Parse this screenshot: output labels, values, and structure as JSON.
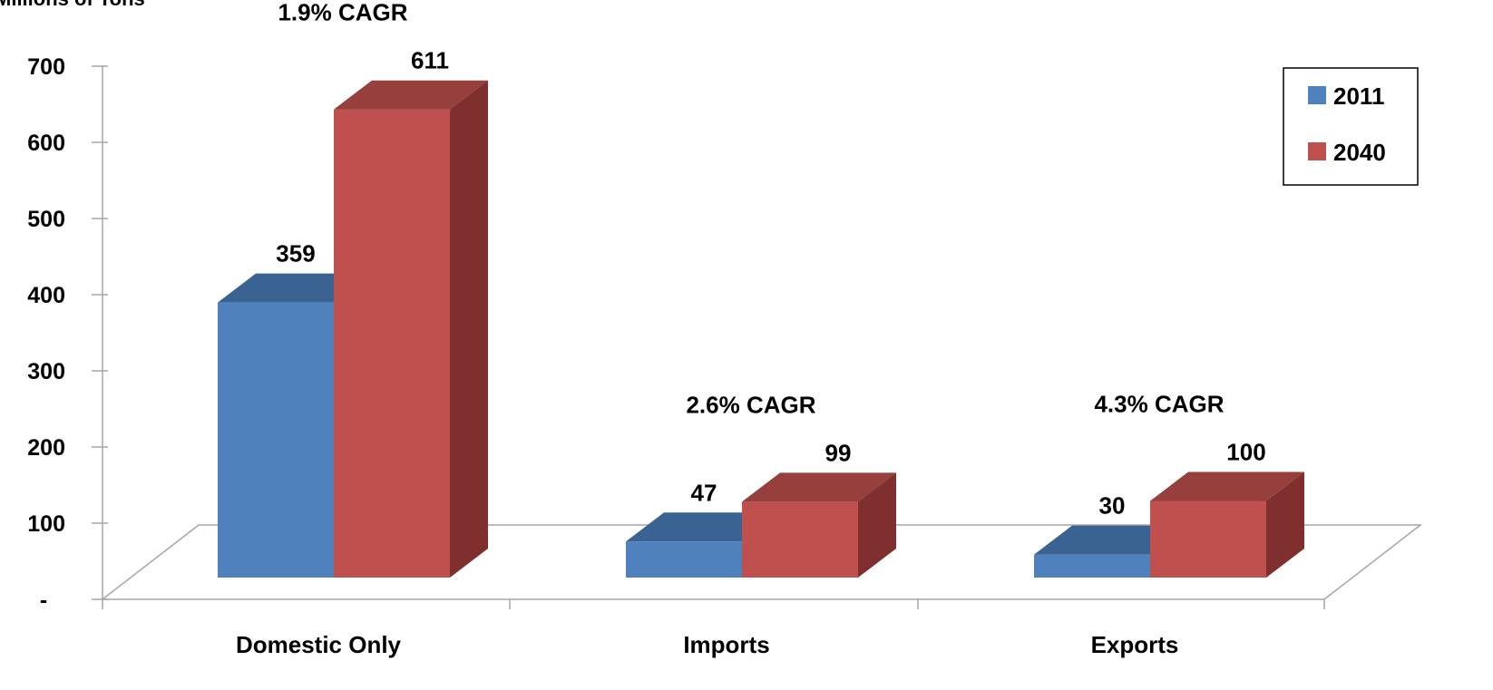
{
  "chart_data": {
    "type": "bar",
    "ylabel": "Millions of Tons",
    "categories": [
      "Domestic Only",
      "Imports",
      "Exports"
    ],
    "series": [
      {
        "name": "2011",
        "values": [
          359,
          47,
          30
        ],
        "color": "#4F81BD",
        "top_color": "#3A6292"
      },
      {
        "name": "2040",
        "values": [
          611,
          99,
          100
        ],
        "color": "#C0504D",
        "top_color": "#963F3D",
        "side_color": "#7F302E"
      }
    ],
    "data_labels": {
      "2011": [
        "359",
        "47",
        "30"
      ],
      "2040": [
        "611",
        "99",
        "100"
      ]
    },
    "annotations": [
      "1.9% CAGR",
      "2.6% CAGR",
      "4.3% CAGR"
    ],
    "yticks": [
      {
        "value": 0,
        "label": "-"
      },
      {
        "value": 100,
        "label": "100"
      },
      {
        "value": 200,
        "label": "200"
      },
      {
        "value": 300,
        "label": "300"
      },
      {
        "value": 400,
        "label": "400"
      },
      {
        "value": 500,
        "label": "500"
      },
      {
        "value": 600,
        "label": "600"
      },
      {
        "value": 700,
        "label": "700"
      }
    ],
    "ylim": [
      0,
      700
    ],
    "legend": {
      "placement": "top-right",
      "entries": [
        "2011",
        "2040"
      ]
    },
    "three_d": true,
    "grid": false
  }
}
